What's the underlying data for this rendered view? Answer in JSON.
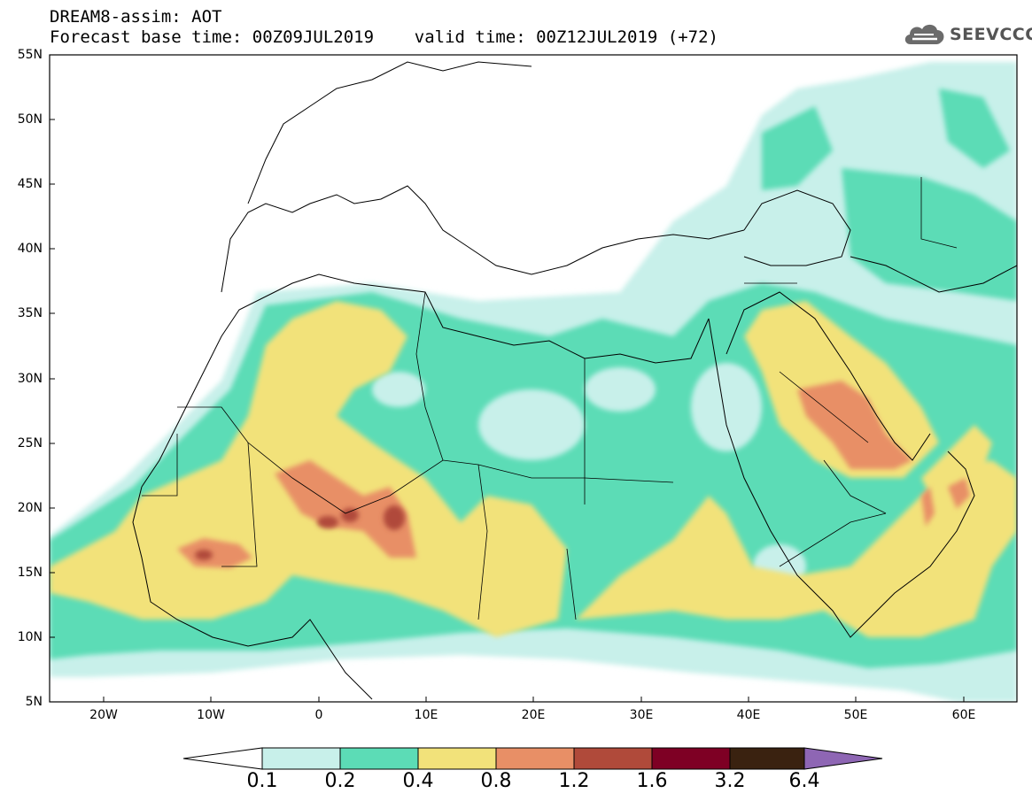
{
  "header": {
    "line1": "DREAM8-assim: AOT",
    "line2": "Forecast base time: 00Z09JUL2019    valid time: 00Z12JUL2019 (+72)"
  },
  "logo": {
    "text": "SEEVCCC",
    "icon": "cloud-icon"
  },
  "map": {
    "lat_labels": [
      "55N",
      "50N",
      "45N",
      "40N",
      "35N",
      "30N",
      "25N",
      "20N",
      "15N",
      "10N",
      "5N"
    ],
    "lon_labels": [
      "20W",
      "10W",
      "0",
      "10E",
      "20E",
      "30E",
      "40E",
      "50E",
      "60E"
    ]
  },
  "colorbar": {
    "colors": [
      "#c8f0ea",
      "#5cdcb6",
      "#f2e27a",
      "#e88f66",
      "#b04a3a",
      "#7e0024",
      "#3a2210",
      "#8e66b4"
    ],
    "labels": [
      "0.1",
      "0.2",
      "0.4",
      "0.8",
      "1.2",
      "1.6",
      "3.2",
      "6.4"
    ]
  }
}
